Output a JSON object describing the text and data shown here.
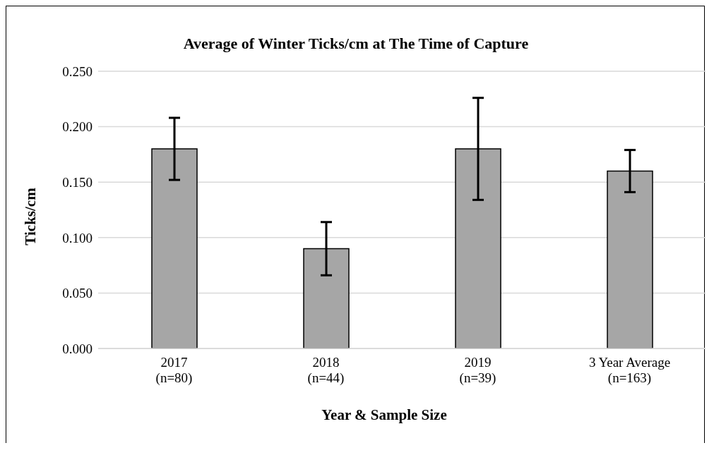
{
  "chart_data": {
    "type": "bar",
    "title": "Average of Winter Ticks/cm at The Time of Capture",
    "xlabel": "Year & Sample Size",
    "ylabel": "Ticks/cm",
    "categories": [
      "2017\n(n=80)",
      "2018\n(n=44)",
      "2019\n(n=39)",
      "3 Year Average\n(n=163)"
    ],
    "values": [
      0.18,
      0.09,
      0.18,
      0.16
    ],
    "errors": [
      0.028,
      0.024,
      0.046,
      0.019
    ],
    "color": "#a6a6a6",
    "ylim": [
      0,
      0.25
    ],
    "yticks": [
      {
        "value": 0,
        "label": "0.000"
      },
      {
        "value": 0.05,
        "label": "0.050"
      },
      {
        "value": 0.1,
        "label": "0.100"
      },
      {
        "value": 0.15,
        "label": "0.150"
      },
      {
        "value": 0.2,
        "label": "0.200"
      },
      {
        "value": 0.25,
        "label": "0.250"
      }
    ],
    "grid": "y"
  }
}
